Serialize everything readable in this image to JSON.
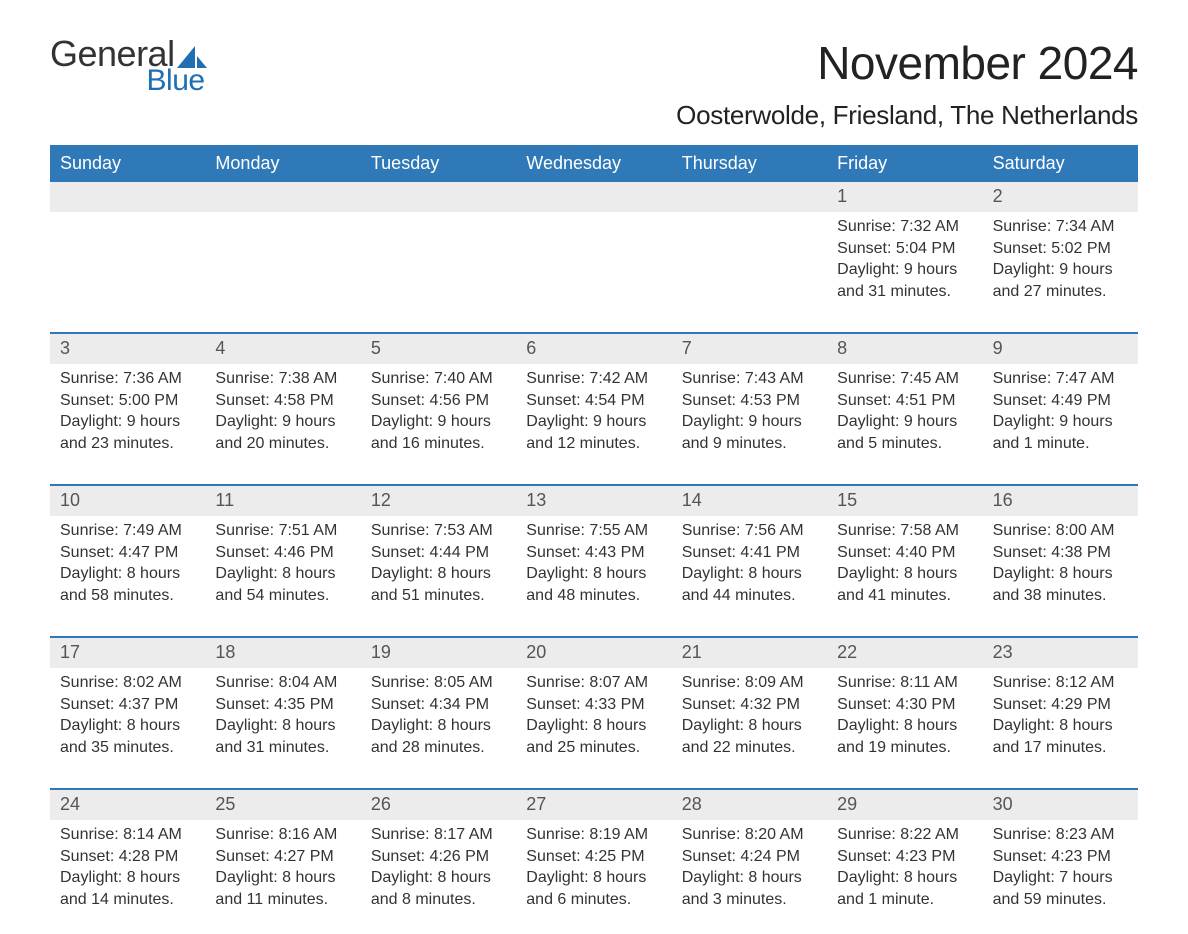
{
  "brand": {
    "general": "General",
    "blue": "Blue"
  },
  "header": {
    "title": "November 2024",
    "location": "Oosterwolde, Friesland, The Netherlands"
  },
  "colors": {
    "header_bg": "#2f79b8",
    "header_text": "#ffffff",
    "daynum_bg": "#ececec",
    "daynum_text": "#555555",
    "body_text": "#333333",
    "logo_blue": "#1f6fb2",
    "page_bg": "#ffffff",
    "rule": "#2f79b8"
  },
  "typography": {
    "title_fontsize": 46,
    "location_fontsize": 26,
    "header_fontsize": 18,
    "daynum_fontsize": 18,
    "detail_fontsize": 16
  },
  "layout": {
    "columns": 7,
    "week_start": "Sunday",
    "first_day_column_index": 5,
    "days_in_month": 30
  },
  "columns": [
    "Sunday",
    "Monday",
    "Tuesday",
    "Wednesday",
    "Thursday",
    "Friday",
    "Saturday"
  ],
  "weeks": [
    {
      "days": [
        null,
        null,
        null,
        null,
        null,
        {
          "n": "1",
          "sunrise": "Sunrise: 7:32 AM",
          "sunset": "Sunset: 5:04 PM",
          "dl1": "Daylight: 9 hours",
          "dl2": "and 31 minutes."
        },
        {
          "n": "2",
          "sunrise": "Sunrise: 7:34 AM",
          "sunset": "Sunset: 5:02 PM",
          "dl1": "Daylight: 9 hours",
          "dl2": "and 27 minutes."
        }
      ]
    },
    {
      "days": [
        {
          "n": "3",
          "sunrise": "Sunrise: 7:36 AM",
          "sunset": "Sunset: 5:00 PM",
          "dl1": "Daylight: 9 hours",
          "dl2": "and 23 minutes."
        },
        {
          "n": "4",
          "sunrise": "Sunrise: 7:38 AM",
          "sunset": "Sunset: 4:58 PM",
          "dl1": "Daylight: 9 hours",
          "dl2": "and 20 minutes."
        },
        {
          "n": "5",
          "sunrise": "Sunrise: 7:40 AM",
          "sunset": "Sunset: 4:56 PM",
          "dl1": "Daylight: 9 hours",
          "dl2": "and 16 minutes."
        },
        {
          "n": "6",
          "sunrise": "Sunrise: 7:42 AM",
          "sunset": "Sunset: 4:54 PM",
          "dl1": "Daylight: 9 hours",
          "dl2": "and 12 minutes."
        },
        {
          "n": "7",
          "sunrise": "Sunrise: 7:43 AM",
          "sunset": "Sunset: 4:53 PM",
          "dl1": "Daylight: 9 hours",
          "dl2": "and 9 minutes."
        },
        {
          "n": "8",
          "sunrise": "Sunrise: 7:45 AM",
          "sunset": "Sunset: 4:51 PM",
          "dl1": "Daylight: 9 hours",
          "dl2": "and 5 minutes."
        },
        {
          "n": "9",
          "sunrise": "Sunrise: 7:47 AM",
          "sunset": "Sunset: 4:49 PM",
          "dl1": "Daylight: 9 hours",
          "dl2": "and 1 minute."
        }
      ]
    },
    {
      "days": [
        {
          "n": "10",
          "sunrise": "Sunrise: 7:49 AM",
          "sunset": "Sunset: 4:47 PM",
          "dl1": "Daylight: 8 hours",
          "dl2": "and 58 minutes."
        },
        {
          "n": "11",
          "sunrise": "Sunrise: 7:51 AM",
          "sunset": "Sunset: 4:46 PM",
          "dl1": "Daylight: 8 hours",
          "dl2": "and 54 minutes."
        },
        {
          "n": "12",
          "sunrise": "Sunrise: 7:53 AM",
          "sunset": "Sunset: 4:44 PM",
          "dl1": "Daylight: 8 hours",
          "dl2": "and 51 minutes."
        },
        {
          "n": "13",
          "sunrise": "Sunrise: 7:55 AM",
          "sunset": "Sunset: 4:43 PM",
          "dl1": "Daylight: 8 hours",
          "dl2": "and 48 minutes."
        },
        {
          "n": "14",
          "sunrise": "Sunrise: 7:56 AM",
          "sunset": "Sunset: 4:41 PM",
          "dl1": "Daylight: 8 hours",
          "dl2": "and 44 minutes."
        },
        {
          "n": "15",
          "sunrise": "Sunrise: 7:58 AM",
          "sunset": "Sunset: 4:40 PM",
          "dl1": "Daylight: 8 hours",
          "dl2": "and 41 minutes."
        },
        {
          "n": "16",
          "sunrise": "Sunrise: 8:00 AM",
          "sunset": "Sunset: 4:38 PM",
          "dl1": "Daylight: 8 hours",
          "dl2": "and 38 minutes."
        }
      ]
    },
    {
      "days": [
        {
          "n": "17",
          "sunrise": "Sunrise: 8:02 AM",
          "sunset": "Sunset: 4:37 PM",
          "dl1": "Daylight: 8 hours",
          "dl2": "and 35 minutes."
        },
        {
          "n": "18",
          "sunrise": "Sunrise: 8:04 AM",
          "sunset": "Sunset: 4:35 PM",
          "dl1": "Daylight: 8 hours",
          "dl2": "and 31 minutes."
        },
        {
          "n": "19",
          "sunrise": "Sunrise: 8:05 AM",
          "sunset": "Sunset: 4:34 PM",
          "dl1": "Daylight: 8 hours",
          "dl2": "and 28 minutes."
        },
        {
          "n": "20",
          "sunrise": "Sunrise: 8:07 AM",
          "sunset": "Sunset: 4:33 PM",
          "dl1": "Daylight: 8 hours",
          "dl2": "and 25 minutes."
        },
        {
          "n": "21",
          "sunrise": "Sunrise: 8:09 AM",
          "sunset": "Sunset: 4:32 PM",
          "dl1": "Daylight: 8 hours",
          "dl2": "and 22 minutes."
        },
        {
          "n": "22",
          "sunrise": "Sunrise: 8:11 AM",
          "sunset": "Sunset: 4:30 PM",
          "dl1": "Daylight: 8 hours",
          "dl2": "and 19 minutes."
        },
        {
          "n": "23",
          "sunrise": "Sunrise: 8:12 AM",
          "sunset": "Sunset: 4:29 PM",
          "dl1": "Daylight: 8 hours",
          "dl2": "and 17 minutes."
        }
      ]
    },
    {
      "days": [
        {
          "n": "24",
          "sunrise": "Sunrise: 8:14 AM",
          "sunset": "Sunset: 4:28 PM",
          "dl1": "Daylight: 8 hours",
          "dl2": "and 14 minutes."
        },
        {
          "n": "25",
          "sunrise": "Sunrise: 8:16 AM",
          "sunset": "Sunset: 4:27 PM",
          "dl1": "Daylight: 8 hours",
          "dl2": "and 11 minutes."
        },
        {
          "n": "26",
          "sunrise": "Sunrise: 8:17 AM",
          "sunset": "Sunset: 4:26 PM",
          "dl1": "Daylight: 8 hours",
          "dl2": "and 8 minutes."
        },
        {
          "n": "27",
          "sunrise": "Sunrise: 8:19 AM",
          "sunset": "Sunset: 4:25 PM",
          "dl1": "Daylight: 8 hours",
          "dl2": "and 6 minutes."
        },
        {
          "n": "28",
          "sunrise": "Sunrise: 8:20 AM",
          "sunset": "Sunset: 4:24 PM",
          "dl1": "Daylight: 8 hours",
          "dl2": "and 3 minutes."
        },
        {
          "n": "29",
          "sunrise": "Sunrise: 8:22 AM",
          "sunset": "Sunset: 4:23 PM",
          "dl1": "Daylight: 8 hours",
          "dl2": "and 1 minute."
        },
        {
          "n": "30",
          "sunrise": "Sunrise: 8:23 AM",
          "sunset": "Sunset: 4:23 PM",
          "dl1": "Daylight: 7 hours",
          "dl2": "and 59 minutes."
        }
      ]
    }
  ]
}
